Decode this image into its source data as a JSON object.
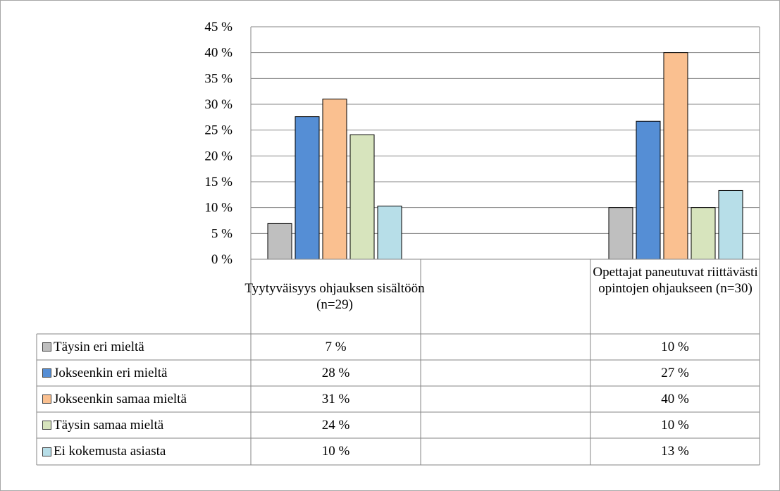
{
  "chart_data": {
    "type": "bar",
    "categories": [
      "Tyytyväisyys ohjauksen sisältöön (n=29)",
      "Opettajat paneutuvat riittävästi opintojen ohjaukseen (n=30)"
    ],
    "series": [
      {
        "name": "Täysin eri mieltä",
        "values": [
          7,
          10
        ],
        "value_labels": [
          "7 %",
          "10 %"
        ],
        "color": "#bfbfbf"
      },
      {
        "name": "Jokseenkin eri mieltä",
        "values": [
          28,
          27
        ],
        "value_labels": [
          "28 %",
          "27 %"
        ],
        "color": "#558ed5"
      },
      {
        "name": "Jokseenkin samaa mieltä",
        "values": [
          31,
          40
        ],
        "value_labels": [
          "31 %",
          "40 %"
        ],
        "color": "#fac090"
      },
      {
        "name": "Täysin samaa mieltä",
        "values": [
          24,
          10
        ],
        "value_labels": [
          "24 %",
          "10 %"
        ],
        "color": "#d7e4bd"
      },
      {
        "name": "Ei kokemusta asiasta",
        "values": [
          10,
          13
        ],
        "value_labels": [
          "10 %",
          "13 %"
        ],
        "color": "#b7dee8"
      }
    ],
    "bar_heights": [
      [
        6.9,
        27.6,
        31.0,
        24.1,
        10.3
      ],
      [
        10.0,
        26.7,
        40.0,
        10.0,
        13.3
      ]
    ],
    "ylim": [
      0,
      45
    ],
    "y_ticks": [
      "0 %",
      "5 %",
      "10 %",
      "15 %",
      "20 %",
      "25 %",
      "30 %",
      "35 %",
      "40 %",
      "45 %"
    ],
    "grid": true,
    "legend": "data-table",
    "title": "",
    "xlabel": "",
    "ylabel": ""
  }
}
